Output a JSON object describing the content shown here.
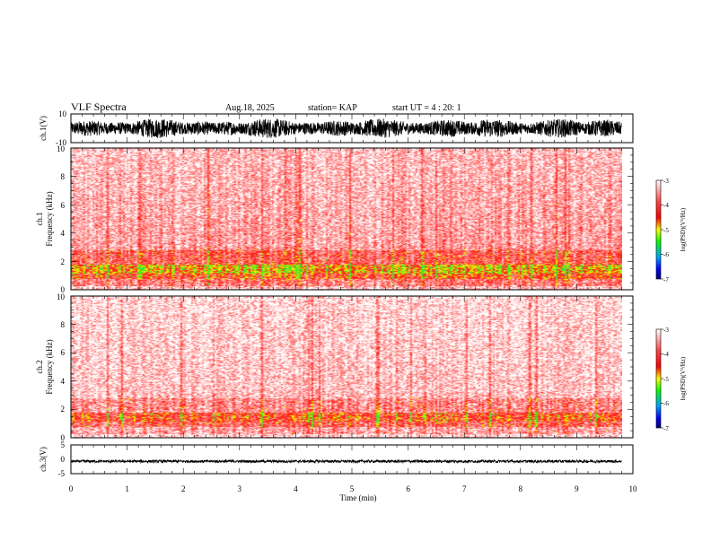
{
  "header": {
    "title": "VLF Spectra",
    "date": "Aug.18, 2025",
    "station": "station= KAP",
    "start_ut": "start  UT =   4 : 20: 1"
  },
  "chart_data": [
    {
      "type": "line",
      "name": "ch1-waveform",
      "ylabel": "ch.1(V)",
      "ylim": [
        -10,
        10
      ],
      "yticks": [
        "10",
        "-10"
      ],
      "xlim": [
        0,
        10
      ],
      "x_extent": [
        0,
        9.8
      ],
      "description_values": {
        "envelope_min": -7,
        "envelope_max": 7
      }
    },
    {
      "type": "heatmap",
      "name": "ch1-spectrogram",
      "ylabel": "ch.1\nFrequency  (kHz)",
      "ylabel_lines": [
        "ch.1",
        "Frequency  (kHz)"
      ],
      "ylim": [
        0,
        10
      ],
      "yticks": [
        "0",
        "2",
        "4",
        "6",
        "8",
        "10"
      ],
      "xlim": [
        0,
        10
      ],
      "x_extent": [
        0,
        9.8
      ],
      "colorbar": {
        "label": "log(PSD)(V²/Hz)",
        "range": [
          -7,
          -3
        ],
        "ticks": [
          "-3",
          "-4",
          "-5",
          "-6",
          "-7"
        ]
      }
    },
    {
      "type": "heatmap",
      "name": "ch2-spectrogram",
      "ylabel_lines": [
        "ch.2",
        "Frequency  (kHz)"
      ],
      "ylim": [
        0,
        10
      ],
      "yticks": [
        "0",
        "2",
        "4",
        "6",
        "8",
        "10"
      ],
      "xlim": [
        0,
        10
      ],
      "x_extent": [
        0,
        9.8
      ],
      "colorbar": {
        "label": "log(PSD)(V²/Hz)",
        "range": [
          -7,
          -3
        ],
        "ticks": [
          "-3",
          "-4",
          "-5",
          "-6",
          "-7"
        ]
      }
    },
    {
      "type": "line",
      "name": "ch3-waveform",
      "ylabel": "ch.3(V)",
      "ylim": [
        -5,
        5
      ],
      "yticks": [
        "5",
        "0",
        "-5"
      ],
      "xlim": [
        0,
        10
      ],
      "x_extent": [
        0,
        9.8
      ],
      "description_values": {
        "level": -0.7
      }
    }
  ],
  "x_axis": {
    "label": "Time  (min)",
    "ticks": [
      "0",
      "1",
      "2",
      "3",
      "4",
      "5",
      "6",
      "7",
      "8",
      "9",
      "10"
    ]
  },
  "colors": {
    "trace": "#000000",
    "spec_red": "#ff2020",
    "spec_yellow": "#e8e000",
    "spec_green": "#40e040"
  }
}
